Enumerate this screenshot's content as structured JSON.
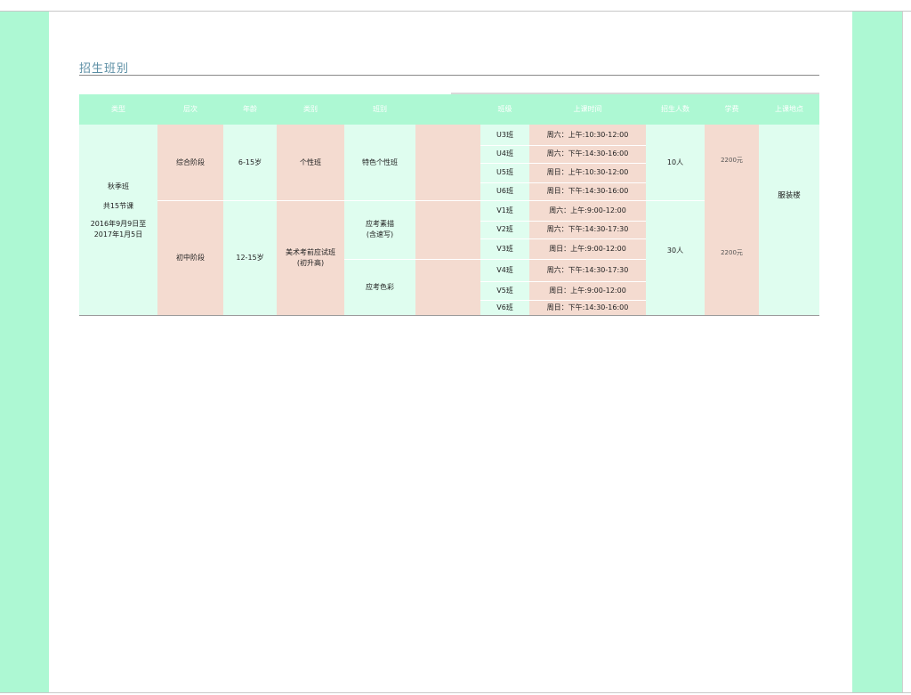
{
  "section_title": "招生班别",
  "headers": [
    "类型",
    "层次",
    "年龄",
    "类别",
    "班别",
    "",
    "班级",
    "上课时间",
    "招生人数",
    "学费",
    "上课地点"
  ],
  "type_cell": {
    "line1": "秋季班",
    "line2": "共15节课",
    "line3": "2016年9月9日至\n2017年1月5日"
  },
  "levels": [
    "综合阶段",
    "初中阶段"
  ],
  "ages": [
    "6-15岁",
    "12-15岁"
  ],
  "categories": [
    "个性班",
    "美术考前应试班\n(初升高)"
  ],
  "class_types": [
    "特色个性班",
    "应考素描\n(含速写)",
    "应考色彩"
  ],
  "classes": [
    {
      "name": "U3班",
      "time": "周六：上午:10:30-12:00"
    },
    {
      "name": "U4班",
      "time": "周六：下午:14:30-16:00"
    },
    {
      "name": "U5班",
      "time": "周日：上午:10:30-12:00"
    },
    {
      "name": "U6班",
      "time": "周日：下午:14:30-16:00"
    },
    {
      "name": "V1班",
      "time": "周六：上午:9:00-12:00"
    },
    {
      "name": "V2班",
      "time": "周六：下午:14:30-17:30"
    },
    {
      "name": "V3班",
      "time": "周日：上午:9:00-12:00"
    },
    {
      "name": "V4班",
      "time": "周六：下午:14:30-17:30"
    },
    {
      "name": "V5班",
      "time": "周日：上午:9:00-12:00"
    },
    {
      "name": "V6班",
      "time": "周日：下午:14:30-16:00"
    }
  ],
  "enrollment": [
    "10人",
    "30人"
  ],
  "fees": [
    "2200元",
    "2200元"
  ],
  "location": "服装楼",
  "colors": {
    "band": "#adf8d3",
    "mint": "#dffdef",
    "peach": "#f4dbd0",
    "title": "#5b8ea4"
  }
}
